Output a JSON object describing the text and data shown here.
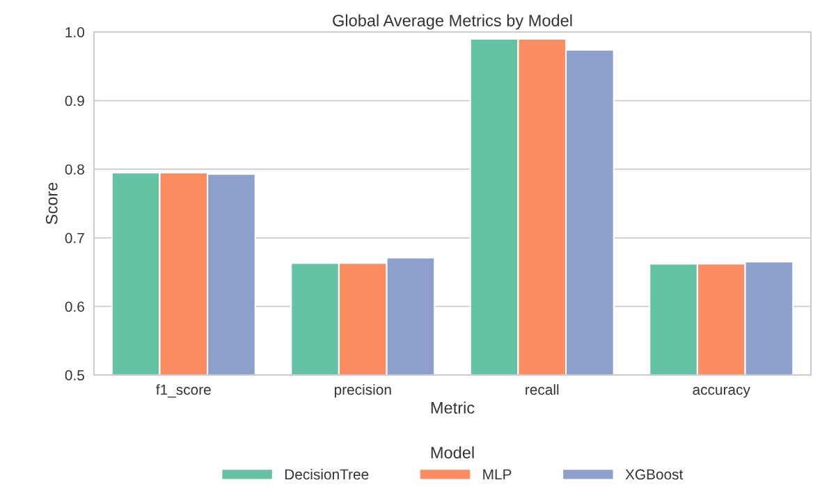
{
  "chart_data": {
    "type": "bar",
    "title": "Global Average Metrics by Model",
    "xlabel": "Metric",
    "ylabel": "Score",
    "legend_title": "Model",
    "categories": [
      "f1_score",
      "precision",
      "recall",
      "accuracy"
    ],
    "series": [
      {
        "name": "DecisionTree",
        "color": "#66c2a5",
        "values": [
          0.795,
          0.663,
          0.99,
          0.662
        ]
      },
      {
        "name": "MLP",
        "color": "#fc8d62",
        "values": [
          0.795,
          0.663,
          0.99,
          0.662
        ]
      },
      {
        "name": "XGBoost",
        "color": "#8da0cb",
        "values": [
          0.793,
          0.671,
          0.974,
          0.665
        ]
      }
    ],
    "ylim": [
      0.5,
      1.0
    ],
    "yticks": [
      0.5,
      0.6,
      0.7,
      0.8,
      0.9,
      {
        "value": 1,
        "label": "1.0"
      }
    ],
    "grid": "y",
    "legend": "bottom"
  }
}
